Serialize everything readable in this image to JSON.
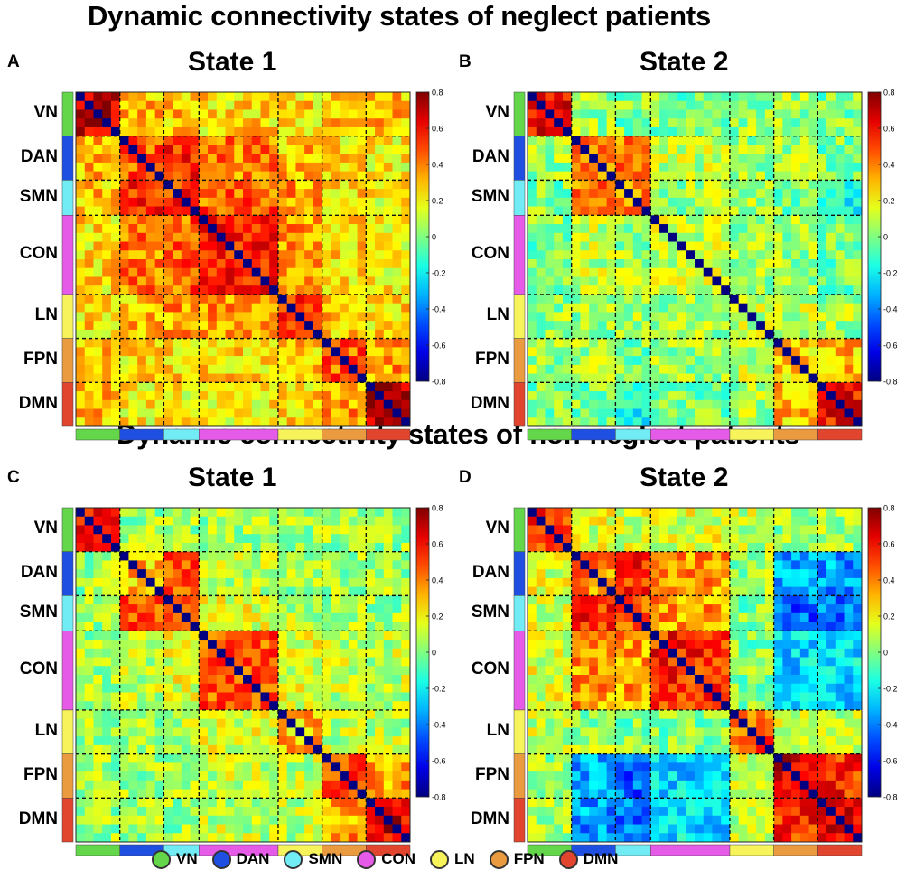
{
  "figure": {
    "top_title": "Dynamic connectivity states of neglect patients",
    "bottom_title": "Dynamic connectivity states of non-neglect patients"
  },
  "networks": [
    {
      "name": "VN",
      "color": "#63d64a"
    },
    {
      "name": "DAN",
      "color": "#1f4fe0"
    },
    {
      "name": "SMN",
      "color": "#71ecf5"
    },
    {
      "name": "CON",
      "color": "#e55ae6"
    },
    {
      "name": "LN",
      "color": "#f7f35a"
    },
    {
      "name": "FPN",
      "color": "#ea9a3f"
    },
    {
      "name": "DMN",
      "color": "#e2452e"
    }
  ],
  "chart_data": [
    {
      "type": "heatmap",
      "panel": "A",
      "group": "neglect",
      "title": "State 1",
      "rows": [
        "VN",
        "DAN",
        "SMN",
        "CON",
        "LN",
        "FPN",
        "DMN"
      ],
      "columns": [
        "VN",
        "DAN",
        "SMN",
        "CON",
        "LN",
        "FPN",
        "DMN"
      ],
      "colorbar": {
        "min": -0.8,
        "max": 0.8,
        "ticks": [
          "0.8",
          "0.6",
          "0.4",
          "0.2",
          "0",
          "-0.2",
          "-0.4",
          "-0.6",
          "-0.8"
        ]
      },
      "network_matrix": [
        [
          0.7,
          0.3,
          0.3,
          0.25,
          0.25,
          0.3,
          0.3
        ],
        [
          0.3,
          0.45,
          0.55,
          0.4,
          0.3,
          0.25,
          0.2
        ],
        [
          0.3,
          0.55,
          0.55,
          0.45,
          0.35,
          0.25,
          0.2
        ],
        [
          0.25,
          0.4,
          0.45,
          0.55,
          0.35,
          0.25,
          0.2
        ],
        [
          0.25,
          0.3,
          0.35,
          0.35,
          0.55,
          0.3,
          0.25
        ],
        [
          0.3,
          0.25,
          0.25,
          0.25,
          0.3,
          0.45,
          0.35
        ],
        [
          0.3,
          0.2,
          0.2,
          0.2,
          0.25,
          0.35,
          0.7
        ]
      ]
    },
    {
      "type": "heatmap",
      "panel": "B",
      "group": "neglect",
      "title": "State 2",
      "rows": [
        "VN",
        "DAN",
        "SMN",
        "CON",
        "LN",
        "FPN",
        "DMN"
      ],
      "columns": [
        "VN",
        "DAN",
        "SMN",
        "CON",
        "LN",
        "FPN",
        "DMN"
      ],
      "colorbar": {
        "min": -0.8,
        "max": 0.8,
        "ticks": [
          "0.8",
          "0.6",
          "0.4",
          "0.2",
          "0",
          "-0.2",
          "-0.4",
          "-0.6",
          "-0.8"
        ]
      },
      "network_matrix": [
        [
          0.6,
          0.05,
          0.0,
          0.0,
          0.05,
          0.05,
          0.0
        ],
        [
          0.05,
          0.35,
          0.4,
          0.1,
          0.05,
          0.05,
          0.0
        ],
        [
          0.0,
          0.4,
          0.4,
          0.05,
          0.05,
          0.0,
          -0.15
        ],
        [
          0.0,
          0.1,
          0.05,
          0.1,
          0.05,
          0.05,
          0.0
        ],
        [
          0.05,
          0.05,
          0.05,
          0.05,
          0.1,
          0.1,
          0.05
        ],
        [
          0.05,
          0.05,
          0.0,
          0.05,
          0.1,
          0.25,
          0.3
        ],
        [
          0.0,
          0.0,
          -0.15,
          0.0,
          0.05,
          0.3,
          0.6
        ]
      ]
    },
    {
      "type": "heatmap",
      "panel": "C",
      "group": "non-neglect",
      "title": "State 1",
      "rows": [
        "VN",
        "DAN",
        "SMN",
        "CON",
        "LN",
        "FPN",
        "DMN"
      ],
      "columns": [
        "VN",
        "DAN",
        "SMN",
        "CON",
        "LN",
        "FPN",
        "DMN"
      ],
      "colorbar": {
        "min": -0.8,
        "max": 0.8,
        "ticks": [
          "0.8",
          "0.6",
          "0.4",
          "0.2",
          "0",
          "-0.2",
          "-0.4",
          "-0.6",
          "-0.8"
        ]
      },
      "network_matrix": [
        [
          0.55,
          0.05,
          0.05,
          0.05,
          0.05,
          0.05,
          0.05
        ],
        [
          0.05,
          0.3,
          0.45,
          0.1,
          0.05,
          0.05,
          0.05
        ],
        [
          0.05,
          0.45,
          0.4,
          0.15,
          0.1,
          0.05,
          0.05
        ],
        [
          0.05,
          0.1,
          0.15,
          0.45,
          0.15,
          0.1,
          0.1
        ],
        [
          0.05,
          0.05,
          0.1,
          0.15,
          0.3,
          0.1,
          0.1
        ],
        [
          0.05,
          0.05,
          0.05,
          0.1,
          0.1,
          0.5,
          0.35
        ],
        [
          0.05,
          0.05,
          0.05,
          0.1,
          0.1,
          0.35,
          0.65
        ]
      ]
    },
    {
      "type": "heatmap",
      "panel": "D",
      "group": "non-neglect",
      "title": "State 2",
      "rows": [
        "VN",
        "DAN",
        "SMN",
        "CON",
        "LN",
        "FPN",
        "DMN"
      ],
      "columns": [
        "VN",
        "DAN",
        "SMN",
        "CON",
        "LN",
        "FPN",
        "DMN"
      ],
      "colorbar": {
        "min": -0.8,
        "max": 0.8,
        "ticks": [
          "0.8",
          "0.6",
          "0.4",
          "0.2",
          "0",
          "-0.2",
          "-0.4",
          "-0.6",
          "-0.8"
        ]
      },
      "network_matrix": [
        [
          0.5,
          0.15,
          0.15,
          0.15,
          0.1,
          0.05,
          0.05
        ],
        [
          0.15,
          0.4,
          0.55,
          0.35,
          0.05,
          -0.35,
          -0.35
        ],
        [
          0.15,
          0.55,
          0.5,
          0.35,
          0.0,
          -0.45,
          -0.4
        ],
        [
          0.15,
          0.35,
          0.35,
          0.55,
          0.0,
          -0.25,
          -0.25
        ],
        [
          0.1,
          0.05,
          0.0,
          0.0,
          0.45,
          0.15,
          0.1
        ],
        [
          0.05,
          -0.35,
          -0.45,
          -0.25,
          0.15,
          0.65,
          0.55
        ],
        [
          0.05,
          -0.35,
          -0.4,
          -0.25,
          0.1,
          0.55,
          0.65
        ]
      ]
    }
  ]
}
